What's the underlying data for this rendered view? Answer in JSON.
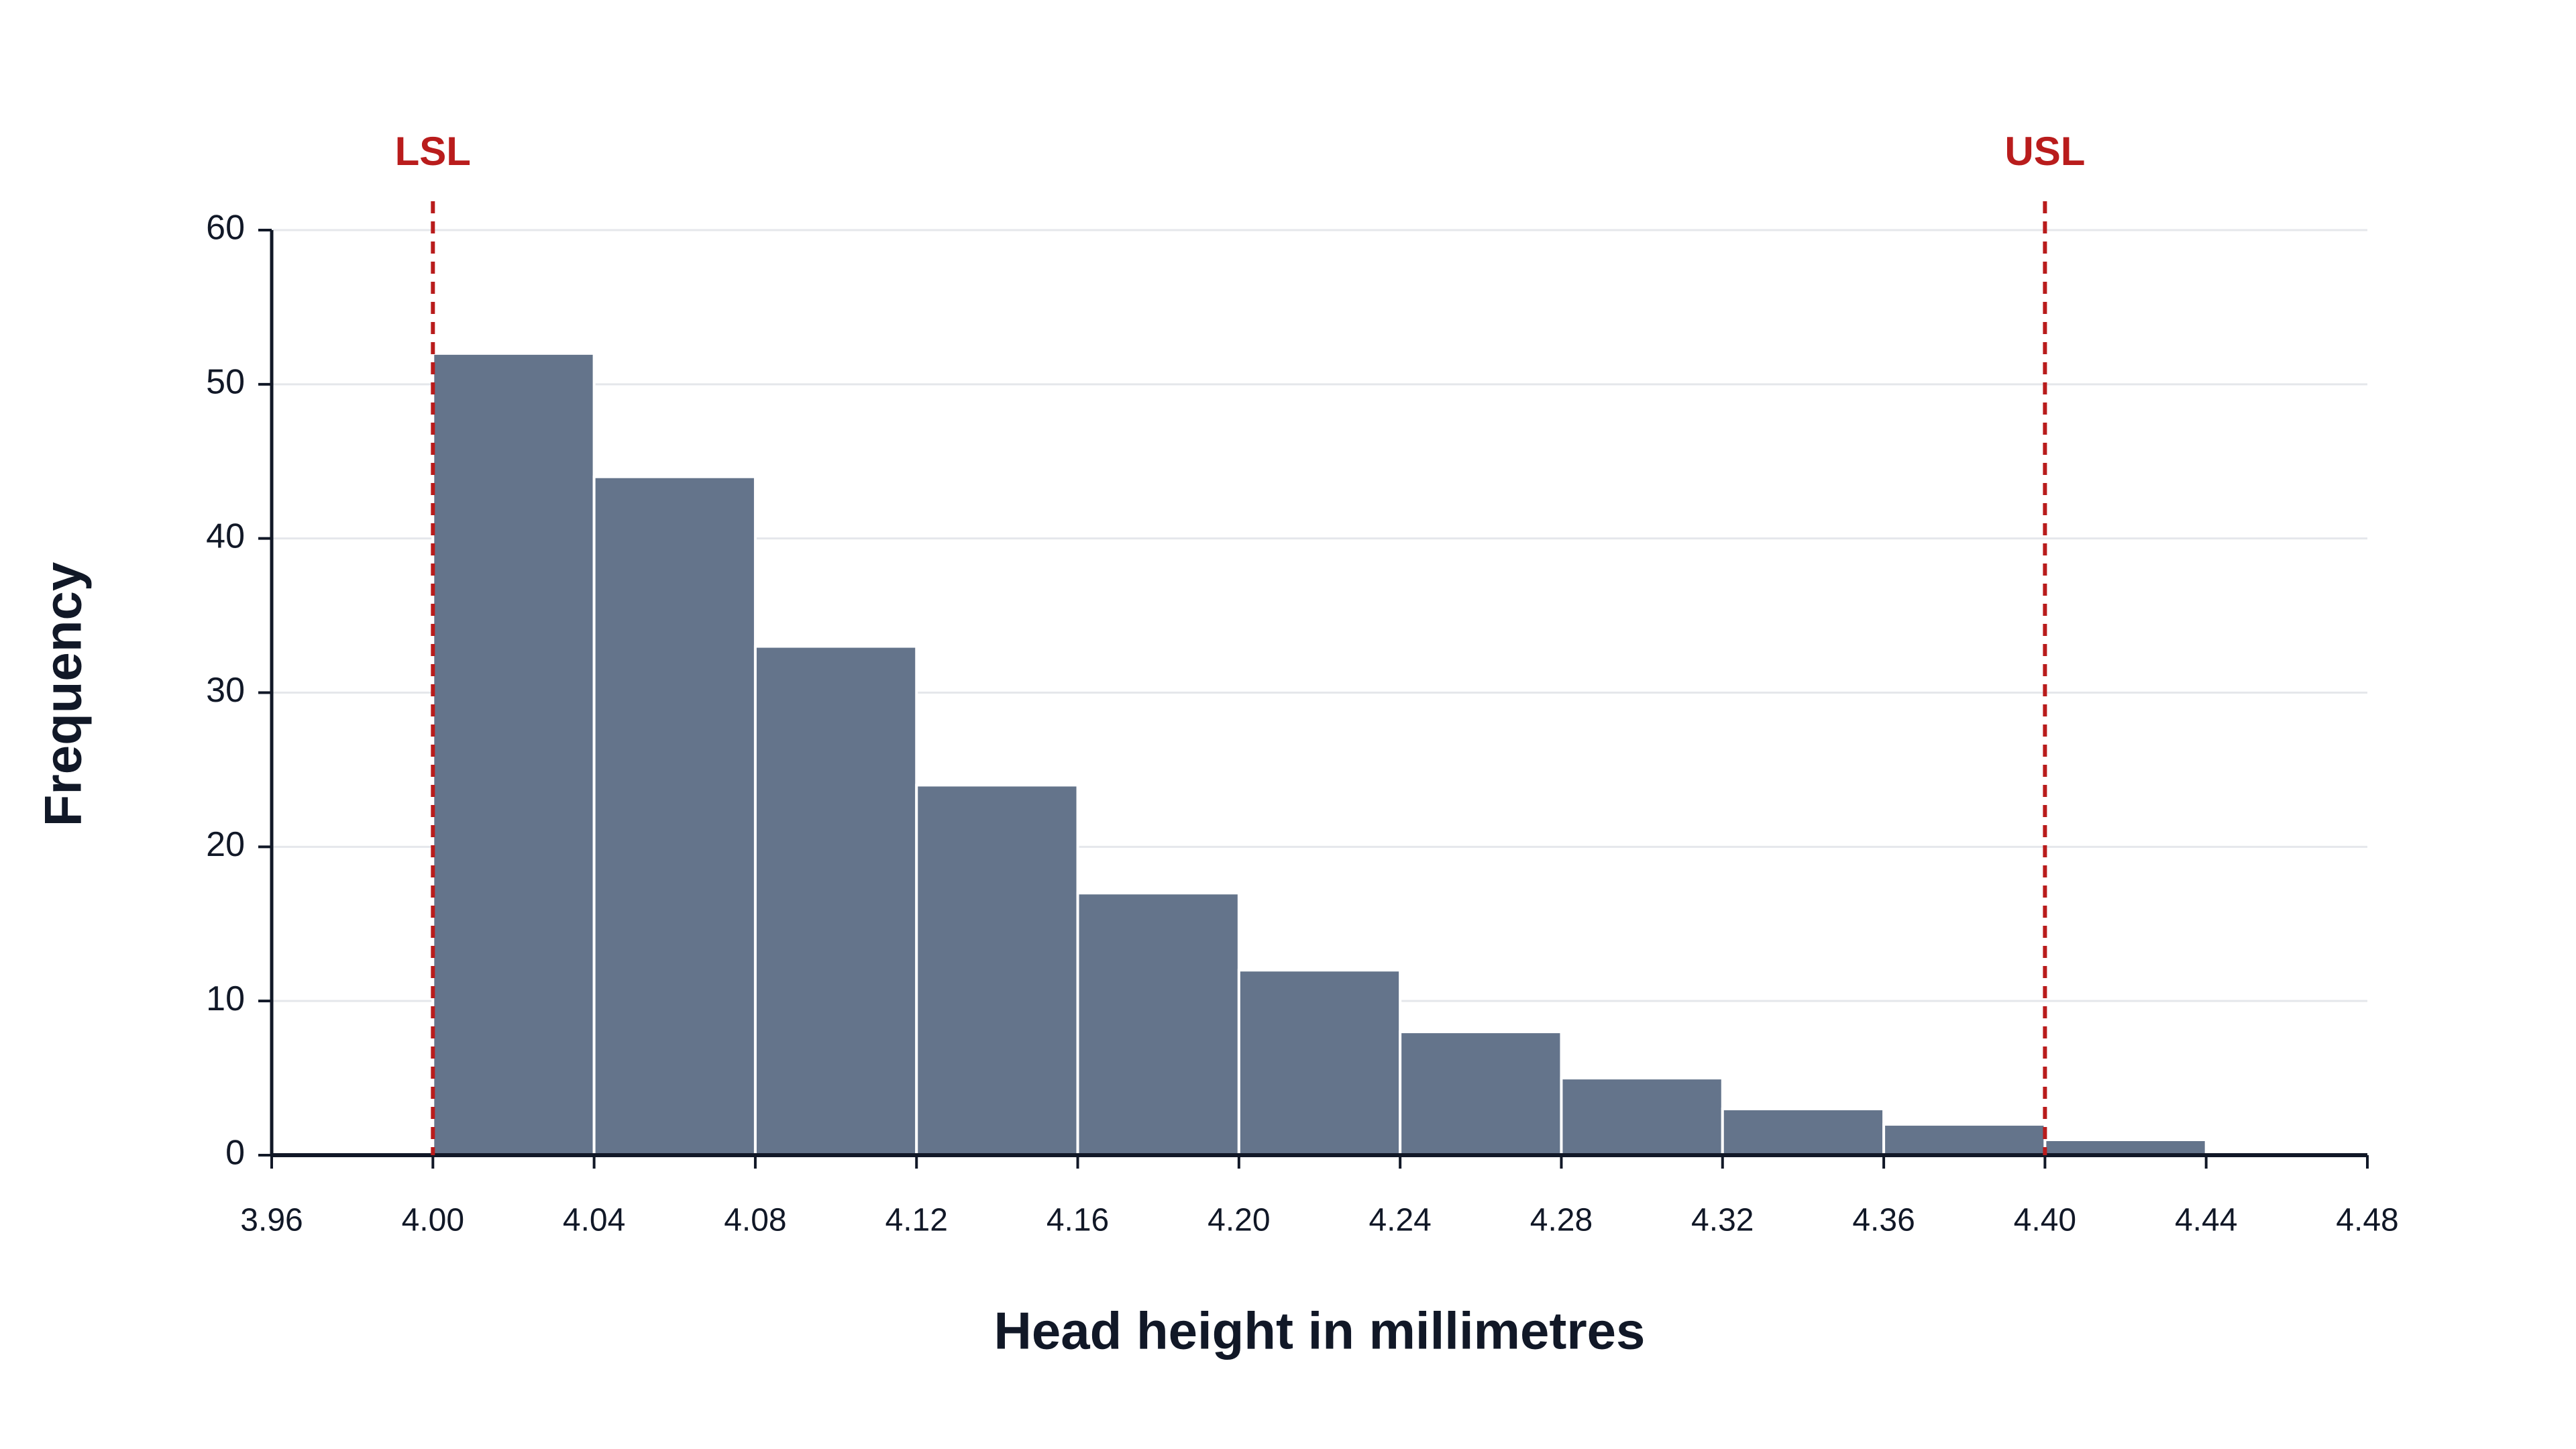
{
  "chart_data": {
    "type": "histogram",
    "x_label": "Head height in millimetres",
    "y_label": "Frequency",
    "bins": [
      4.0,
      4.04,
      4.08,
      4.12,
      4.16,
      4.2,
      4.24,
      4.28,
      4.32,
      4.36,
      4.4,
      4.44
    ],
    "values": [
      52,
      44,
      33,
      24,
      17,
      12,
      8,
      5,
      3,
      2,
      1
    ],
    "color": "#64748b",
    "xlim": [
      3.96,
      4.48
    ],
    "xticks": [
      3.96,
      {
        "value": 4.0,
        "label": "4.00"
      },
      4.04,
      4.08,
      4.12,
      4.16,
      {
        "value": 4.2,
        "label": "4.20"
      },
      4.24,
      4.28,
      4.32,
      4.36,
      {
        "value": 4.4,
        "label": "4.40"
      },
      4.44,
      4.48
    ],
    "ylim": [
      0,
      60
    ],
    "yticks": [
      0,
      10,
      20,
      30,
      40,
      50,
      60
    ],
    "grid": true,
    "spec_limits": [
      {
        "label": "LSL",
        "value": 4.0,
        "color": "#b91c1c"
      },
      {
        "label": "USL",
        "value": 4.4,
        "color": "#b91c1c"
      }
    ]
  }
}
